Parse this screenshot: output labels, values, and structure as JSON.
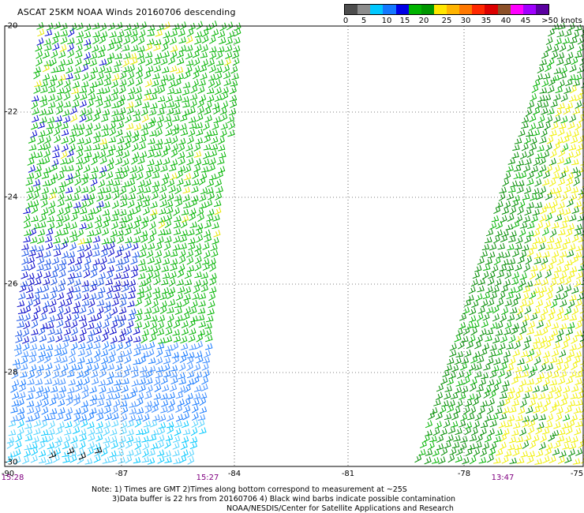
{
  "header": {
    "title": "ASCAT 25KM NOAA Winds 20160706 descending"
  },
  "colorbar": {
    "colors": [
      "#4d4d4d",
      "#8c8c8c",
      "#00c8ff",
      "#1478ff",
      "#0000e6",
      "#00b400",
      "#009600",
      "#ffe600",
      "#ffb400",
      "#ff7800",
      "#ff2800",
      "#dc0000",
      "#8c5028",
      "#ff00ff",
      "#a000ff",
      "#5a00a0"
    ],
    "labels": [
      "0",
      "5",
      "10",
      "15",
      "20",
      "25",
      "30",
      "35",
      "40",
      "45",
      ">50 knots"
    ]
  },
  "axes": {
    "lat_labels": [
      "-20",
      "-22",
      "-24",
      "-26",
      "-28",
      "-30"
    ],
    "lon_labels": [
      "-90",
      "-87",
      "-84",
      "-81",
      "-78",
      "-75"
    ]
  },
  "pass_times": [
    "15:28",
    "15:27",
    "13:47"
  ],
  "notes": [
    "Note: 1) Times are GMT 2)Times along bottom correspond to measurement at ~25S",
    "3)Data buffer is 22 hrs from 20160706 4) Black wind barbs indicate possible contamination",
    "NOAA/NESDIS/Center for Satellite Applications and Research"
  ]
}
